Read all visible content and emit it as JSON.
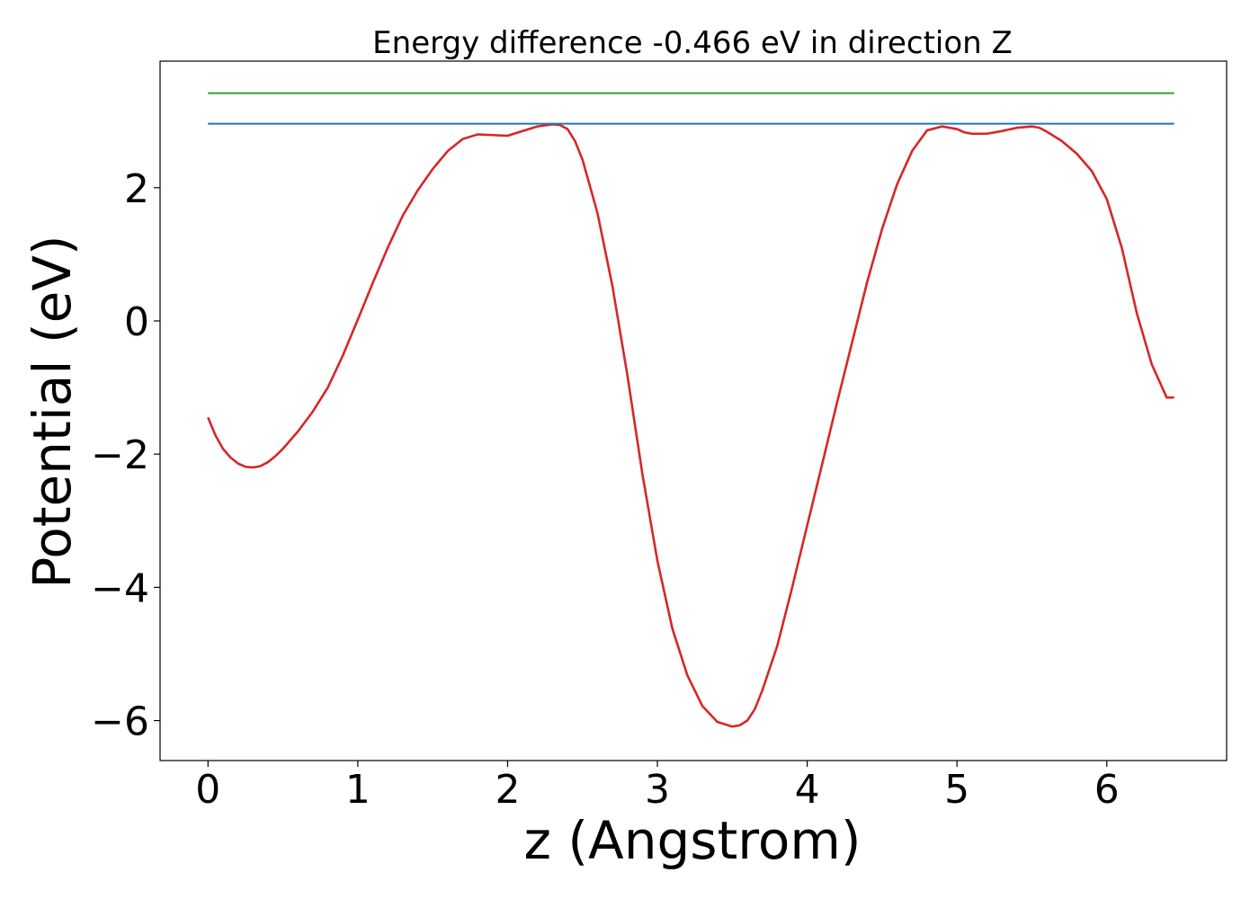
{
  "chart_data": {
    "type": "line",
    "title": "Energy difference -0.466 eV in direction Z",
    "xlabel": "z (Angstrom)",
    "ylabel": "Potential (eV)",
    "xlim": [
      -0.32,
      6.8
    ],
    "ylim": [
      -6.6,
      3.9
    ],
    "xticks": [
      0,
      1,
      2,
      3,
      4,
      5,
      6
    ],
    "yticks": [
      -6,
      -4,
      -2,
      0,
      2
    ],
    "xtick_labels": [
      "0",
      "1",
      "2",
      "3",
      "4",
      "5",
      "6"
    ],
    "ytick_labels": [
      "−6",
      "−4",
      "−2",
      "0",
      "2"
    ],
    "grid": false,
    "legend": "none",
    "series": [
      {
        "color": "#d62728",
        "x": [
          0,
          0.05,
          0.1,
          0.15,
          0.2,
          0.25,
          0.3,
          0.35,
          0.4,
          0.45,
          0.5,
          0.6,
          0.7,
          0.8,
          0.9,
          1.0,
          1.1,
          1.2,
          1.3,
          1.4,
          1.5,
          1.6,
          1.7,
          1.8,
          1.9,
          2.0,
          2.1,
          2.2,
          2.3,
          2.35,
          2.4,
          2.45,
          2.5,
          2.6,
          2.7,
          2.8,
          2.9,
          3.0,
          3.1,
          3.2,
          3.3,
          3.4,
          3.5,
          3.55,
          3.6,
          3.65,
          3.7,
          3.8,
          3.9,
          4.0,
          4.1,
          4.2,
          4.3,
          4.4,
          4.5,
          4.6,
          4.7,
          4.8,
          4.9,
          5.0,
          5.05,
          5.1,
          5.2,
          5.3,
          5.4,
          5.5,
          5.55,
          5.6,
          5.7,
          5.8,
          5.9,
          6.0,
          6.1,
          6.2,
          6.3,
          6.4,
          6.45
        ],
        "y": [
          -1.45,
          -1.72,
          -1.92,
          -2.05,
          -2.14,
          -2.19,
          -2.2,
          -2.18,
          -2.12,
          -2.03,
          -1.92,
          -1.66,
          -1.36,
          -1.0,
          -0.52,
          0.02,
          0.57,
          1.1,
          1.58,
          1.96,
          2.28,
          2.55,
          2.73,
          2.8,
          2.79,
          2.78,
          2.85,
          2.92,
          2.95,
          2.94,
          2.88,
          2.7,
          2.42,
          1.62,
          0.52,
          -0.82,
          -2.3,
          -3.6,
          -4.62,
          -5.32,
          -5.78,
          -6.02,
          -6.09,
          -6.07,
          -6.0,
          -5.83,
          -5.55,
          -4.88,
          -4.0,
          -3.07,
          -2.15,
          -1.22,
          -0.32,
          0.58,
          1.38,
          2.05,
          2.55,
          2.86,
          2.92,
          2.88,
          2.83,
          2.81,
          2.81,
          2.85,
          2.9,
          2.92,
          2.9,
          2.84,
          2.7,
          2.51,
          2.25,
          1.83,
          1.1,
          0.12,
          -0.65,
          -1.15,
          -1.15
        ]
      },
      {
        "color": "#2ca02c",
        "x": [
          0,
          6.45
        ],
        "y": [
          3.42,
          3.42
        ]
      },
      {
        "color": "#1f77b4",
        "x": [
          0,
          6.45
        ],
        "y": [
          2.96,
          2.96
        ]
      }
    ]
  }
}
